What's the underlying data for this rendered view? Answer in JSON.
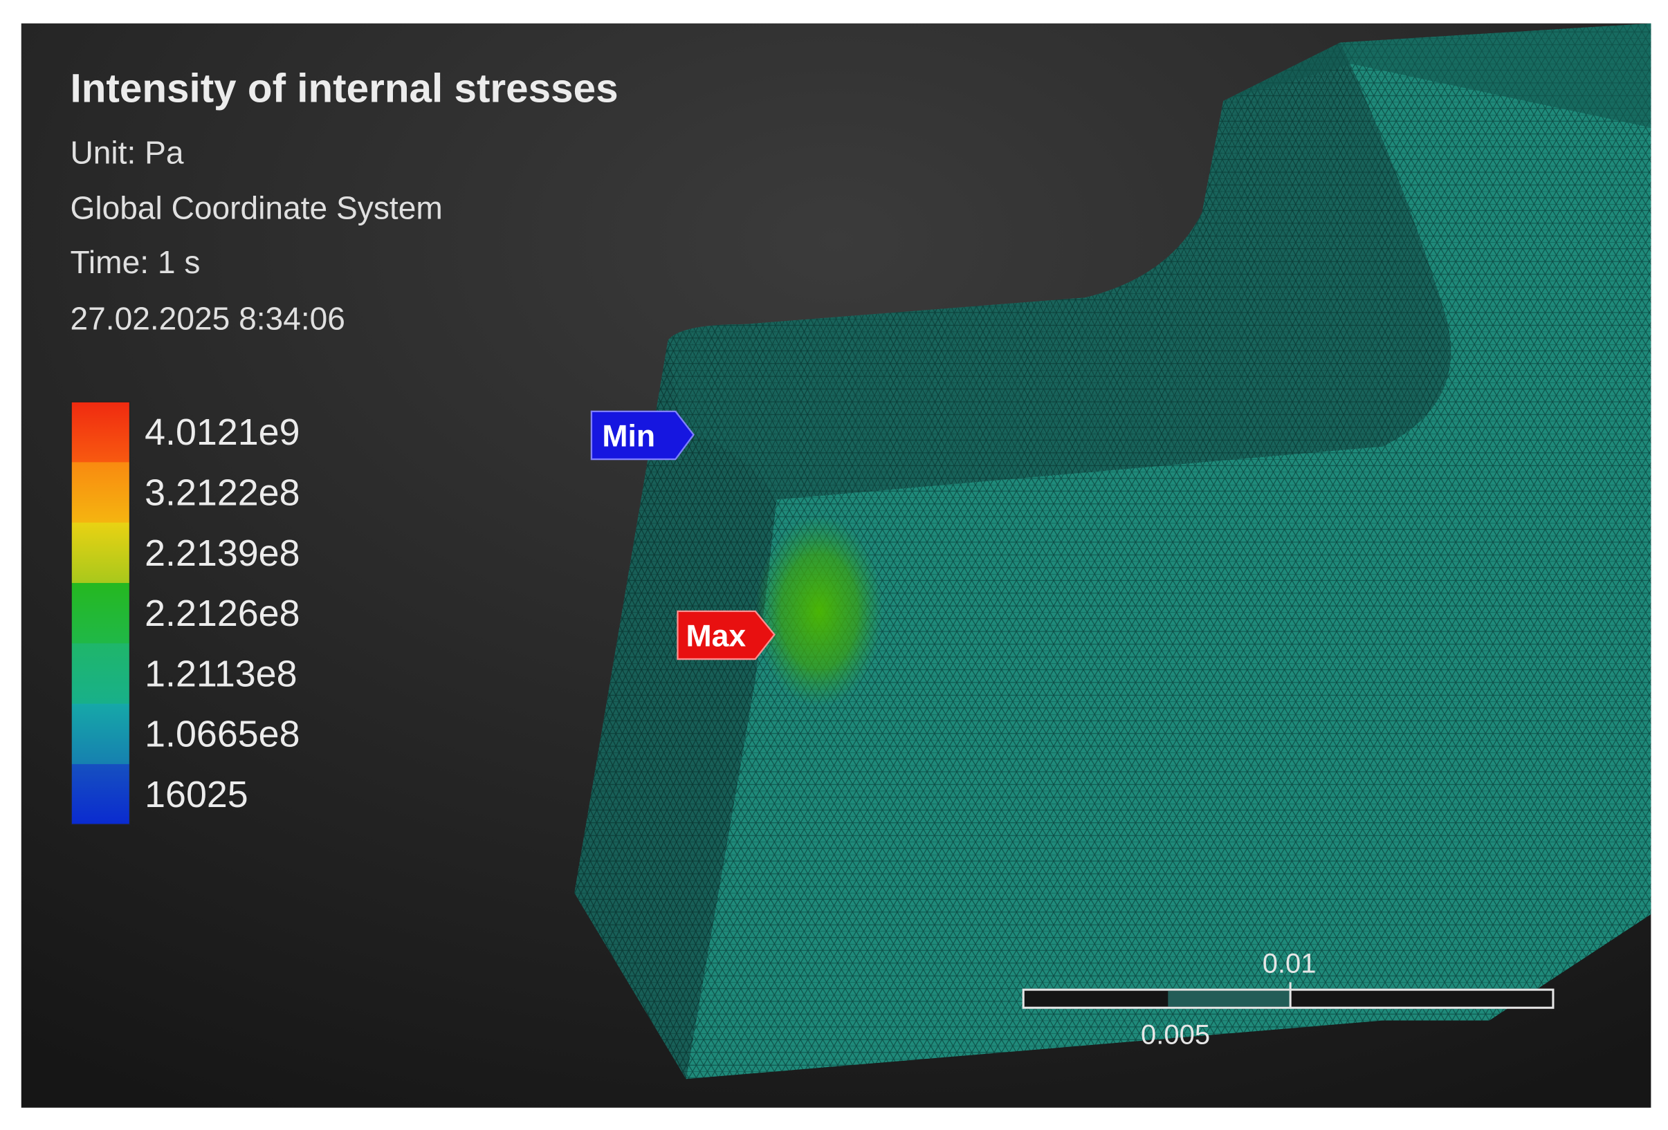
{
  "header": {
    "title": "Intensity of internal stresses",
    "unit": "Unit: Pa",
    "coordinate_system": "Global Coordinate System",
    "time": "Time: 1 s",
    "timestamp": "27.02.2025 8:34:06"
  },
  "legend": {
    "labels": [
      "4.0121e9",
      "3.2122e8",
      "2.2139e8",
      "2.2126e8",
      "1.2113e8",
      "1.0665e8",
      "16025"
    ]
  },
  "markers": {
    "min": "Min",
    "max": "Max"
  },
  "scale_bar": {
    "top_label": "0.01",
    "bottom_label": "0.005"
  }
}
